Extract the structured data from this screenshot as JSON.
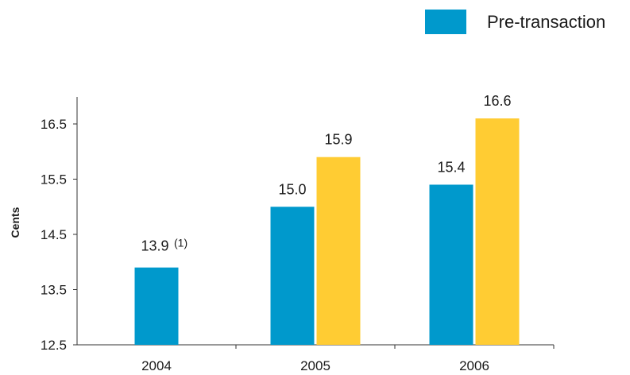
{
  "colors": {
    "series_a": "#0099cc",
    "series_b": "#ffcc33"
  },
  "legend": {
    "label": "Pre-transaction"
  },
  "chart_data": {
    "type": "bar",
    "categories": [
      "2004",
      "2005",
      "2006"
    ],
    "series": [
      {
        "name": "Pre-transaction",
        "values": [
          13.9,
          15.0,
          15.4
        ],
        "labels": [
          "13.9",
          "15.0",
          "15.4"
        ]
      },
      {
        "values": [
          null,
          15.9,
          16.6
        ],
        "labels": [
          "",
          "15.9",
          "16.6"
        ]
      }
    ],
    "annotations": [
      {
        "category": "2004",
        "series": 0,
        "text": "(1)"
      }
    ],
    "ylabel": "Cents",
    "xlabel": "",
    "ylim": [
      12.5,
      17.0
    ],
    "yticks": [
      12.5,
      13.5,
      14.5,
      15.5,
      16.5
    ],
    "ytick_labels": [
      "12.5",
      "13.5",
      "14.5",
      "15.5",
      "16.5"
    ],
    "grid": false,
    "legend_position": "top-right"
  }
}
